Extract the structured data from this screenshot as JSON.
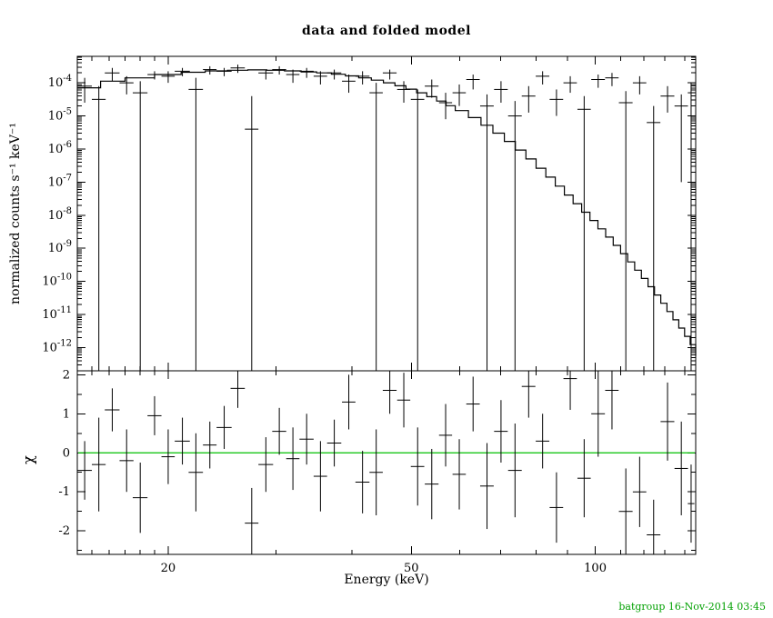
{
  "footer": {
    "credit": "batgroup 16-Nov-2014 03:45",
    "color": "#00a000"
  },
  "chart_data": [
    {
      "id": "spectrum",
      "type": "line+errorbar",
      "title": "data and folded model",
      "xlabel": "Energy (keV)",
      "ylabel": "normalized counts s⁻¹ keV⁻¹",
      "xscale": "log",
      "yscale": "log",
      "xlim": [
        14.2,
        146
      ],
      "ylim_log10": [
        -12.7,
        -3.2
      ],
      "ytick_exponents": [
        -4,
        -5,
        -6,
        -7,
        -8,
        -9,
        -10,
        -11,
        -12
      ],
      "xticks_major": [
        20,
        50,
        100
      ],
      "xticks_minor": [
        15,
        16,
        17,
        18,
        19,
        30,
        40,
        60,
        70,
        80,
        90,
        110,
        120,
        130,
        140
      ],
      "model_color": "#000000",
      "model_steps_log10": [
        [
          14.2,
          -4.15
        ],
        [
          15.5,
          -3.95
        ],
        [
          17,
          -3.85
        ],
        [
          19,
          -3.75
        ],
        [
          21,
          -3.68
        ],
        [
          23,
          -3.64
        ],
        [
          25,
          -3.62
        ],
        [
          27,
          -3.61
        ],
        [
          29,
          -3.62
        ],
        [
          31,
          -3.64
        ],
        [
          33,
          -3.67
        ],
        [
          35,
          -3.7
        ],
        [
          37,
          -3.74
        ],
        [
          39,
          -3.79
        ],
        [
          41,
          -3.85
        ],
        [
          43,
          -3.92
        ],
        [
          45,
          -4.0
        ],
        [
          47,
          -4.09
        ],
        [
          49,
          -4.19
        ],
        [
          51,
          -4.3
        ],
        [
          53,
          -4.42
        ],
        [
          55,
          -4.55
        ],
        [
          57,
          -4.69
        ],
        [
          59,
          -4.84
        ],
        [
          62,
          -5.05
        ],
        [
          65,
          -5.28
        ],
        [
          68,
          -5.52
        ],
        [
          71,
          -5.77
        ],
        [
          74,
          -6.03
        ],
        [
          77,
          -6.3
        ],
        [
          80,
          -6.58
        ],
        [
          83,
          -6.85
        ],
        [
          86,
          -7.12
        ],
        [
          89,
          -7.39
        ],
        [
          92,
          -7.65
        ],
        [
          95,
          -7.91
        ],
        [
          98,
          -8.16
        ],
        [
          101,
          -8.41
        ],
        [
          104,
          -8.66
        ],
        [
          107,
          -8.91
        ],
        [
          110,
          -9.16
        ],
        [
          113,
          -9.41
        ],
        [
          116,
          -9.66
        ],
        [
          119,
          -9.91
        ],
        [
          122,
          -10.16
        ],
        [
          125,
          -10.41
        ],
        [
          128,
          -10.66
        ],
        [
          131,
          -10.91
        ],
        [
          134,
          -11.16
        ],
        [
          137,
          -11.41
        ],
        [
          140,
          -11.66
        ],
        [
          143,
          -11.91
        ],
        [
          146,
          -12.25
        ]
      ],
      "point_columns": [
        "energy_keV",
        "half_width_keV",
        "log10_value",
        "log10_err_low_or_null_to_axis",
        "log10_err_high"
      ],
      "points": [
        [
          14.6,
          0.4,
          -4.1,
          -4.6,
          -3.85
        ],
        [
          15.4,
          0.4,
          -4.5,
          null,
          -4.1
        ],
        [
          16.2,
          0.45,
          -3.7,
          -3.95,
          -3.55
        ],
        [
          17.1,
          0.45,
          -4.0,
          -4.35,
          -3.8
        ],
        [
          18.0,
          0.5,
          -4.3,
          null,
          -3.95
        ],
        [
          19.0,
          0.5,
          -3.75,
          -3.9,
          -3.65
        ],
        [
          20.0,
          0.5,
          -3.8,
          -4.0,
          -3.65
        ],
        [
          21.1,
          0.6,
          -3.65,
          -3.8,
          -3.55
        ],
        [
          22.2,
          0.6,
          -4.2,
          null,
          -3.85
        ],
        [
          23.4,
          0.6,
          -3.6,
          -3.75,
          -3.5
        ],
        [
          24.7,
          0.7,
          -3.65,
          -3.8,
          -3.55
        ],
        [
          26.0,
          0.7,
          -3.55,
          -3.7,
          -3.45
        ],
        [
          27.4,
          0.7,
          -5.4,
          null,
          -4.4
        ],
        [
          28.9,
          0.8,
          -3.7,
          -3.9,
          -3.6
        ],
        [
          30.4,
          0.8,
          -3.6,
          -3.75,
          -3.5
        ],
        [
          32.0,
          0.8,
          -3.75,
          -4.0,
          -3.6
        ],
        [
          33.7,
          0.9,
          -3.65,
          -3.85,
          -3.55
        ],
        [
          35.5,
          0.9,
          -3.8,
          -4.05,
          -3.65
        ],
        [
          37.4,
          1.0,
          -3.7,
          -3.9,
          -3.6
        ],
        [
          39.5,
          1.0,
          -3.95,
          -4.3,
          -3.75
        ],
        [
          41.6,
          1.1,
          -3.8,
          -4.05,
          -3.65
        ],
        [
          43.8,
          1.1,
          -4.3,
          null,
          -4.0
        ],
        [
          46.1,
          1.2,
          -3.7,
          -3.9,
          -3.6
        ],
        [
          48.6,
          1.2,
          -4.2,
          -4.6,
          -3.95
        ],
        [
          51.2,
          1.3,
          -4.5,
          null,
          -4.2
        ],
        [
          54.0,
          1.4,
          -4.1,
          -4.45,
          -3.9
        ],
        [
          56.9,
          1.4,
          -4.6,
          -5.1,
          -4.3
        ],
        [
          59.9,
          1.5,
          -4.3,
          -4.7,
          -4.05
        ],
        [
          63.1,
          1.6,
          -3.9,
          -4.2,
          -3.75
        ],
        [
          66.5,
          1.7,
          -4.7,
          null,
          -4.35
        ],
        [
          70.1,
          1.8,
          -4.2,
          -4.6,
          -3.95
        ],
        [
          73.9,
          1.9,
          -5.0,
          null,
          -4.55
        ],
        [
          77.8,
          2.0,
          -4.4,
          -4.9,
          -4.1
        ],
        [
          82.0,
          2.1,
          -3.8,
          -4.05,
          -3.65
        ],
        [
          86.4,
          2.2,
          -4.5,
          -5.0,
          -4.2
        ],
        [
          91.0,
          2.3,
          -4.0,
          -4.3,
          -3.8
        ],
        [
          95.9,
          2.4,
          -4.8,
          null,
          -4.4
        ],
        [
          101.1,
          2.6,
          -3.9,
          -4.15,
          -3.75
        ],
        [
          106.5,
          2.7,
          -3.85,
          -4.1,
          -3.7
        ],
        [
          112.2,
          2.9,
          -4.6,
          null,
          -4.25
        ],
        [
          118.2,
          3.0,
          -4.0,
          -4.35,
          -3.8
        ],
        [
          124.6,
          3.2,
          -5.2,
          null,
          -4.7
        ],
        [
          131.3,
          3.4,
          -4.4,
          -4.9,
          -4.1
        ],
        [
          138.3,
          3.5,
          -4.7,
          -7.0,
          -4.35
        ],
        [
          143.5,
          1.8,
          -4.3,
          null,
          -4.0
        ]
      ]
    },
    {
      "id": "residuals",
      "type": "errorbar",
      "ylabel": "χ",
      "ylim": [
        -2.6,
        2.1
      ],
      "yticks": [
        -2,
        -1,
        0,
        1,
        2
      ],
      "yticks_minor": [
        -2.5,
        -1.5,
        -0.5,
        0.5,
        1.5
      ],
      "zero_line": {
        "y": 0,
        "color": "#00c000"
      },
      "point_columns": [
        "energy_keV",
        "half_width_keV",
        "chi",
        "chi_err"
      ],
      "points": [
        [
          14.6,
          0.4,
          -0.45,
          0.75
        ],
        [
          15.4,
          0.4,
          -0.3,
          1.2
        ],
        [
          16.2,
          0.45,
          1.1,
          0.55
        ],
        [
          17.1,
          0.45,
          -0.2,
          0.8
        ],
        [
          18.0,
          0.5,
          -1.15,
          0.9
        ],
        [
          19.0,
          0.5,
          0.95,
          0.5
        ],
        [
          20.0,
          0.5,
          -0.1,
          0.7
        ],
        [
          21.1,
          0.6,
          0.3,
          0.6
        ],
        [
          22.2,
          0.6,
          -0.5,
          1.0
        ],
        [
          23.4,
          0.6,
          0.2,
          0.6
        ],
        [
          24.7,
          0.7,
          0.65,
          0.55
        ],
        [
          26.0,
          0.7,
          1.65,
          0.5
        ],
        [
          27.4,
          0.7,
          -1.8,
          0.9
        ],
        [
          28.9,
          0.8,
          -0.3,
          0.7
        ],
        [
          30.4,
          0.8,
          0.55,
          0.6
        ],
        [
          32.0,
          0.8,
          -0.15,
          0.8
        ],
        [
          33.7,
          0.9,
          0.35,
          0.65
        ],
        [
          35.5,
          0.9,
          -0.6,
          0.9
        ],
        [
          37.4,
          1.0,
          0.25,
          0.6
        ],
        [
          39.5,
          1.0,
          1.3,
          0.7
        ],
        [
          41.6,
          1.1,
          -0.75,
          0.8
        ],
        [
          43.8,
          1.1,
          -0.5,
          1.1
        ],
        [
          46.1,
          1.2,
          1.6,
          0.6
        ],
        [
          48.6,
          1.2,
          1.35,
          0.7
        ],
        [
          51.2,
          1.3,
          -0.35,
          1.0
        ],
        [
          54.0,
          1.4,
          -0.8,
          0.9
        ],
        [
          56.9,
          1.4,
          0.45,
          0.8
        ],
        [
          59.9,
          1.5,
          -0.55,
          0.9
        ],
        [
          63.1,
          1.6,
          1.25,
          0.7
        ],
        [
          66.5,
          1.7,
          -0.85,
          1.1
        ],
        [
          70.1,
          1.8,
          0.55,
          0.8
        ],
        [
          73.9,
          1.9,
          -0.45,
          1.2
        ],
        [
          77.8,
          2.0,
          1.7,
          0.8
        ],
        [
          82.0,
          2.1,
          0.3,
          0.7
        ],
        [
          86.4,
          2.2,
          -1.4,
          0.9
        ],
        [
          91.0,
          2.3,
          1.9,
          0.8
        ],
        [
          95.9,
          2.4,
          -0.65,
          1.0
        ],
        [
          101.1,
          2.6,
          1.0,
          1.1
        ],
        [
          106.5,
          2.7,
          1.6,
          1.0
        ],
        [
          112.2,
          2.9,
          -1.5,
          1.1
        ],
        [
          118.2,
          3.0,
          -1.0,
          0.9
        ],
        [
          124.6,
          3.2,
          -2.1,
          0.9
        ],
        [
          131.3,
          3.4,
          0.8,
          1.0
        ],
        [
          138.3,
          3.5,
          -0.4,
          1.2
        ],
        [
          143.5,
          1.8,
          -1.3,
          1.0
        ]
      ]
    }
  ]
}
